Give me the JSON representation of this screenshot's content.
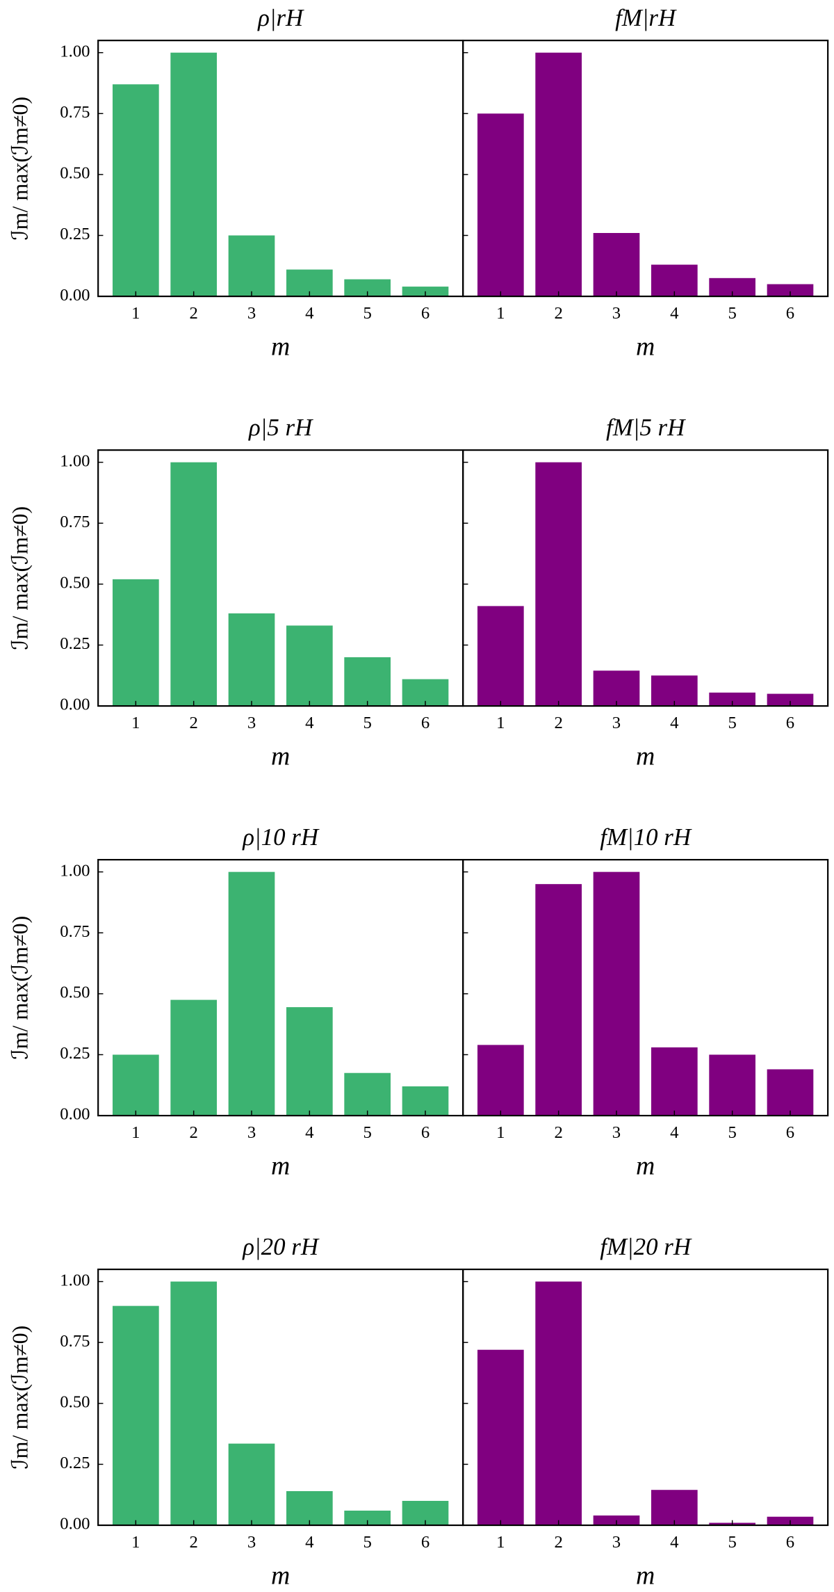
{
  "chart_data": [
    {
      "type": "bar",
      "title": "ρ|rH",
      "xlabel": "m",
      "ylabel": "ℐm/ max(ℐm≠0)",
      "categories": [
        "1",
        "2",
        "3",
        "4",
        "5",
        "6"
      ],
      "values": [
        0.87,
        1.0,
        0.25,
        0.11,
        0.07,
        0.04
      ],
      "color": "#3cb371",
      "ylim": [
        0,
        1.05
      ],
      "yticks": [
        {
          "value": 0,
          "label": "0.00"
        },
        {
          "value": 0.25,
          "label": "0.25"
        },
        {
          "value": 0.5,
          "label": "0.50"
        },
        {
          "value": 0.75,
          "label": "0.75"
        },
        {
          "value": 1,
          "label": "1.00"
        }
      ]
    },
    {
      "type": "bar",
      "title": "fM|rH",
      "xlabel": "m",
      "categories": [
        "1",
        "2",
        "3",
        "4",
        "5",
        "6"
      ],
      "values": [
        0.75,
        1.0,
        0.26,
        0.13,
        0.075,
        0.05
      ],
      "color": "#800080",
      "ylim": [
        0,
        1.05
      ],
      "yticks": [
        0,
        0.25,
        0.5,
        0.75,
        1
      ]
    },
    {
      "type": "bar",
      "title": "ρ|5 rH",
      "xlabel": "m",
      "ylabel": "ℐm/ max(ℐm≠0)",
      "categories": [
        "1",
        "2",
        "3",
        "4",
        "5",
        "6"
      ],
      "values": [
        0.52,
        1.0,
        0.38,
        0.33,
        0.2,
        0.11
      ],
      "color": "#3cb371",
      "ylim": [
        0,
        1.05
      ],
      "yticks": [
        {
          "value": 0,
          "label": "0.00"
        },
        {
          "value": 0.25,
          "label": "0.25"
        },
        {
          "value": 0.5,
          "label": "0.50"
        },
        {
          "value": 0.75,
          "label": "0.75"
        },
        {
          "value": 1,
          "label": "1.00"
        }
      ]
    },
    {
      "type": "bar",
      "title": "fM|5 rH",
      "xlabel": "m",
      "categories": [
        "1",
        "2",
        "3",
        "4",
        "5",
        "6"
      ],
      "values": [
        0.41,
        1.0,
        0.145,
        0.125,
        0.055,
        0.05
      ],
      "color": "#800080",
      "ylim": [
        0,
        1.05
      ],
      "yticks": [
        0,
        0.25,
        0.5,
        0.75,
        1
      ]
    },
    {
      "type": "bar",
      "title": "ρ|10 rH",
      "xlabel": "m",
      "ylabel": "ℐm/ max(ℐm≠0)",
      "categories": [
        "1",
        "2",
        "3",
        "4",
        "5",
        "6"
      ],
      "values": [
        0.25,
        0.475,
        1.0,
        0.445,
        0.175,
        0.12
      ],
      "color": "#3cb371",
      "ylim": [
        0,
        1.05
      ],
      "yticks": [
        {
          "value": 0,
          "label": "0.00"
        },
        {
          "value": 0.25,
          "label": "0.25"
        },
        {
          "value": 0.5,
          "label": "0.50"
        },
        {
          "value": 0.75,
          "label": "0.75"
        },
        {
          "value": 1,
          "label": "1.00"
        }
      ]
    },
    {
      "type": "bar",
      "title": "fM|10 rH",
      "xlabel": "m",
      "categories": [
        "1",
        "2",
        "3",
        "4",
        "5",
        "6"
      ],
      "values": [
        0.29,
        0.95,
        1.0,
        0.28,
        0.25,
        0.19
      ],
      "color": "#800080",
      "ylim": [
        0,
        1.05
      ],
      "yticks": [
        0,
        0.25,
        0.5,
        0.75,
        1
      ]
    },
    {
      "type": "bar",
      "title": "ρ|20 rH",
      "xlabel": "m",
      "ylabel": "ℐm/ max(ℐm≠0)",
      "categories": [
        "1",
        "2",
        "3",
        "4",
        "5",
        "6"
      ],
      "values": [
        0.9,
        1.0,
        0.335,
        0.14,
        0.06,
        0.1
      ],
      "color": "#3cb371",
      "ylim": [
        0,
        1.05
      ],
      "yticks": [
        {
          "value": 0,
          "label": "0.00"
        },
        {
          "value": 0.25,
          "label": "0.25"
        },
        {
          "value": 0.5,
          "label": "0.50"
        },
        {
          "value": 0.75,
          "label": "0.75"
        },
        {
          "value": 1,
          "label": "1.00"
        }
      ]
    },
    {
      "type": "bar",
      "title": "fM|20 rH",
      "xlabel": "m",
      "categories": [
        "1",
        "2",
        "3",
        "4",
        "5",
        "6"
      ],
      "values": [
        0.72,
        1.0,
        0.04,
        0.145,
        0.01,
        0.035
      ],
      "color": "#800080",
      "ylim": [
        0,
        1.05
      ],
      "yticks": [
        0,
        0.25,
        0.5,
        0.75,
        1
      ]
    }
  ]
}
